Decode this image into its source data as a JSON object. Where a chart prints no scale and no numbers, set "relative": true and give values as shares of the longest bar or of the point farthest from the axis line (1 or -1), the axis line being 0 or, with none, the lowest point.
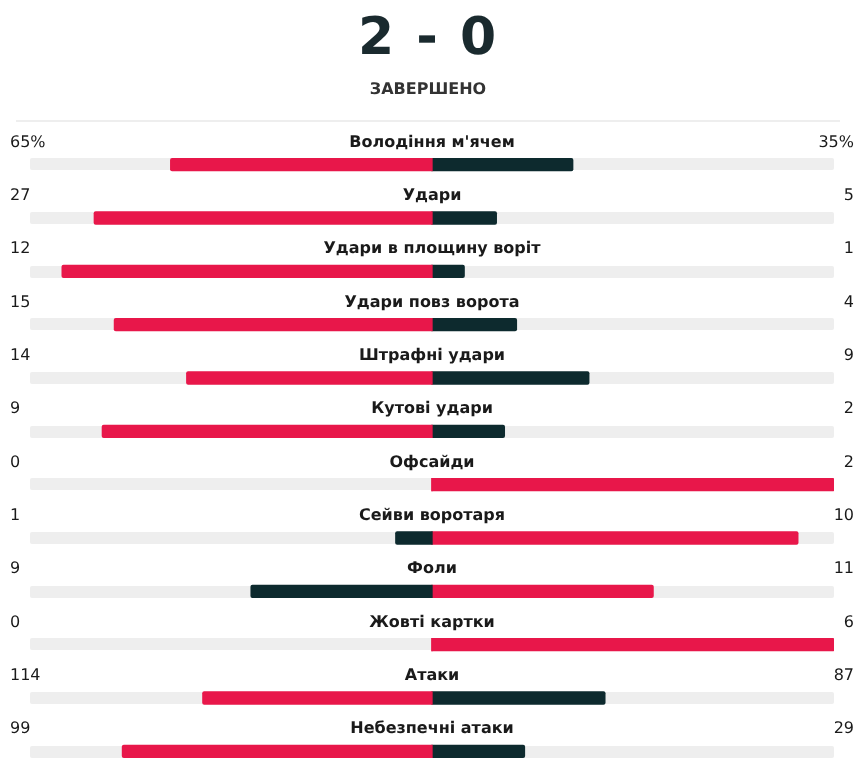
{
  "chart_data": {
    "type": "bar",
    "title": "2 - 0",
    "subtitle": "ЗАВЕРШЕНО",
    "orientation": "horizontal",
    "stacked": true,
    "relative": true,
    "categories": [
      "Володіння м'ячем",
      "Удари",
      "Удари в площину воріт",
      "Удари повз ворота",
      "Штрафні удари",
      "Кутові удари",
      "Офсайди",
      "Сейви воротаря",
      "Фоли",
      "Жовті картки",
      "Атаки",
      "Небезпечні атаки"
    ],
    "series": [
      {
        "values": [
          -0.65,
          -0.84,
          -0.92,
          -0.79,
          -0.61,
          -0.82,
          0,
          -0.09,
          -0.45,
          0,
          -0.57,
          -0.77
        ],
        "colors": [
          "#e8174a",
          "#e8174a",
          "#e8174a",
          "#e8174a",
          "#e8174a",
          "#e8174a",
          "#e8174a",
          "#0d2a2e",
          "#0d2a2e",
          "#e8174a",
          "#e8174a",
          "#e8174a"
        ]
      },
      {
        "values": [
          0.35,
          0.16,
          0.08,
          0.21,
          0.39,
          0.18,
          1,
          0.91,
          0.55,
          1,
          0.43,
          0.23
        ],
        "colors": [
          "#0d2a2e",
          "#0d2a2e",
          "#0d2a2e",
          "#0d2a2e",
          "#0d2a2e",
          "#0d2a2e",
          "#e8174a",
          "#e8174a",
          "#e8174a",
          "#e8174a",
          "#0d2a2e",
          "#0d2a2e"
        ]
      }
    ],
    "annotations": [
      "65%",
      "35%",
      "27",
      "5",
      "12",
      "1",
      "15",
      "4",
      "14",
      "9",
      "9",
      "2",
      "0",
      "2",
      "1",
      "10",
      "9",
      "11",
      "0",
      "6",
      "114",
      "87",
      "99",
      "29"
    ]
  }
}
